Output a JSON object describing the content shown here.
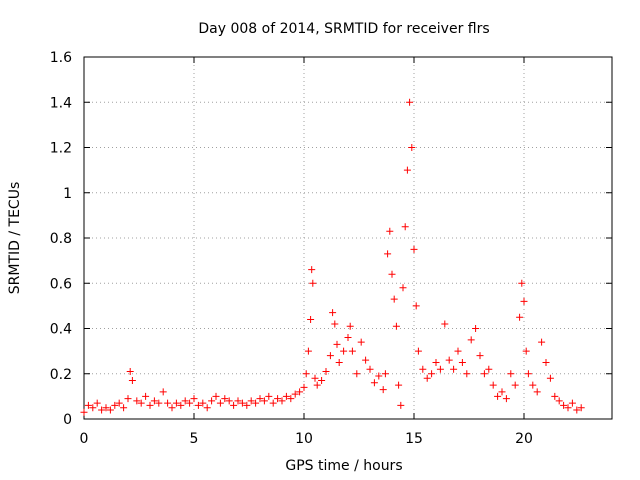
{
  "chart_data": {
    "type": "scatter",
    "title": "Day 008 of 2014, SRMTID for receiver flrs",
    "xlabel": "GPS time / hours",
    "ylabel": "SRMTID / TECUs",
    "xlim": [
      0,
      24
    ],
    "ylim": [
      0,
      1.6
    ],
    "xticks": [
      0,
      5,
      10,
      15,
      20
    ],
    "xtick_labels": [
      "0",
      "5",
      "10",
      "15",
      "20"
    ],
    "yticks": [
      0,
      0.2,
      0.4,
      0.6,
      0.8,
      1.0,
      1.2,
      1.4,
      1.6
    ],
    "ytick_labels": [
      "0",
      "0.2",
      "0.4",
      "0.6",
      "0.8",
      "1",
      "1.2",
      "1.4",
      "1.6"
    ],
    "grid": true,
    "marker": "+",
    "color": "#ff0000",
    "series": [
      {
        "name": "flrs",
        "points": [
          [
            0.0,
            0.03
          ],
          [
            0.2,
            0.06
          ],
          [
            0.4,
            0.05
          ],
          [
            0.6,
            0.07
          ],
          [
            0.8,
            0.04
          ],
          [
            1.0,
            0.05
          ],
          [
            1.2,
            0.04
          ],
          [
            1.4,
            0.06
          ],
          [
            1.6,
            0.07
          ],
          [
            1.8,
            0.05
          ],
          [
            2.0,
            0.09
          ],
          [
            2.1,
            0.21
          ],
          [
            2.2,
            0.17
          ],
          [
            2.4,
            0.08
          ],
          [
            2.6,
            0.07
          ],
          [
            2.8,
            0.1
          ],
          [
            3.0,
            0.06
          ],
          [
            3.2,
            0.08
          ],
          [
            3.4,
            0.07
          ],
          [
            3.6,
            0.12
          ],
          [
            3.8,
            0.07
          ],
          [
            4.0,
            0.05
          ],
          [
            4.2,
            0.07
          ],
          [
            4.4,
            0.06
          ],
          [
            4.6,
            0.08
          ],
          [
            4.8,
            0.07
          ],
          [
            5.0,
            0.09
          ],
          [
            5.2,
            0.06
          ],
          [
            5.4,
            0.07
          ],
          [
            5.6,
            0.05
          ],
          [
            5.8,
            0.08
          ],
          [
            6.0,
            0.1
          ],
          [
            6.2,
            0.07
          ],
          [
            6.4,
            0.09
          ],
          [
            6.6,
            0.08
          ],
          [
            6.8,
            0.06
          ],
          [
            7.0,
            0.08
          ],
          [
            7.2,
            0.07
          ],
          [
            7.4,
            0.06
          ],
          [
            7.6,
            0.08
          ],
          [
            7.8,
            0.07
          ],
          [
            8.0,
            0.09
          ],
          [
            8.2,
            0.08
          ],
          [
            8.4,
            0.1
          ],
          [
            8.6,
            0.07
          ],
          [
            8.8,
            0.09
          ],
          [
            9.0,
            0.08
          ],
          [
            9.2,
            0.1
          ],
          [
            9.4,
            0.09
          ],
          [
            9.6,
            0.11
          ],
          [
            9.8,
            0.12
          ],
          [
            10.0,
            0.14
          ],
          [
            10.1,
            0.2
          ],
          [
            10.2,
            0.3
          ],
          [
            10.3,
            0.44
          ],
          [
            10.35,
            0.66
          ],
          [
            10.4,
            0.6
          ],
          [
            10.5,
            0.18
          ],
          [
            10.6,
            0.15
          ],
          [
            10.8,
            0.17
          ],
          [
            11.0,
            0.21
          ],
          [
            11.2,
            0.28
          ],
          [
            11.3,
            0.47
          ],
          [
            11.4,
            0.42
          ],
          [
            11.5,
            0.33
          ],
          [
            11.6,
            0.25
          ],
          [
            11.8,
            0.3
          ],
          [
            12.0,
            0.36
          ],
          [
            12.1,
            0.41
          ],
          [
            12.2,
            0.3
          ],
          [
            12.4,
            0.2
          ],
          [
            12.6,
            0.34
          ],
          [
            12.8,
            0.26
          ],
          [
            13.0,
            0.22
          ],
          [
            13.2,
            0.16
          ],
          [
            13.4,
            0.19
          ],
          [
            13.6,
            0.13
          ],
          [
            13.7,
            0.2
          ],
          [
            13.8,
            0.73
          ],
          [
            13.9,
            0.83
          ],
          [
            14.0,
            0.64
          ],
          [
            14.1,
            0.53
          ],
          [
            14.2,
            0.41
          ],
          [
            14.3,
            0.15
          ],
          [
            14.4,
            0.06
          ],
          [
            14.5,
            0.58
          ],
          [
            14.6,
            0.85
          ],
          [
            14.7,
            1.1
          ],
          [
            14.8,
            1.4
          ],
          [
            14.9,
            1.2
          ],
          [
            15.0,
            0.75
          ],
          [
            15.1,
            0.5
          ],
          [
            15.2,
            0.3
          ],
          [
            15.4,
            0.22
          ],
          [
            15.6,
            0.18
          ],
          [
            15.8,
            0.2
          ],
          [
            16.0,
            0.25
          ],
          [
            16.2,
            0.22
          ],
          [
            16.4,
            0.42
          ],
          [
            16.6,
            0.26
          ],
          [
            16.8,
            0.22
          ],
          [
            17.0,
            0.3
          ],
          [
            17.2,
            0.25
          ],
          [
            17.4,
            0.2
          ],
          [
            17.6,
            0.35
          ],
          [
            17.8,
            0.4
          ],
          [
            18.0,
            0.28
          ],
          [
            18.2,
            0.2
          ],
          [
            18.4,
            0.22
          ],
          [
            18.6,
            0.15
          ],
          [
            18.8,
            0.1
          ],
          [
            19.0,
            0.12
          ],
          [
            19.2,
            0.09
          ],
          [
            19.4,
            0.2
          ],
          [
            19.6,
            0.15
          ],
          [
            19.8,
            0.45
          ],
          [
            19.9,
            0.6
          ],
          [
            20.0,
            0.52
          ],
          [
            20.1,
            0.3
          ],
          [
            20.2,
            0.2
          ],
          [
            20.4,
            0.15
          ],
          [
            20.6,
            0.12
          ],
          [
            20.8,
            0.34
          ],
          [
            21.0,
            0.25
          ],
          [
            21.2,
            0.18
          ],
          [
            21.4,
            0.1
          ],
          [
            21.6,
            0.08
          ],
          [
            21.8,
            0.06
          ],
          [
            22.0,
            0.05
          ],
          [
            22.2,
            0.07
          ],
          [
            22.4,
            0.04
          ],
          [
            22.6,
            0.05
          ]
        ]
      }
    ]
  }
}
